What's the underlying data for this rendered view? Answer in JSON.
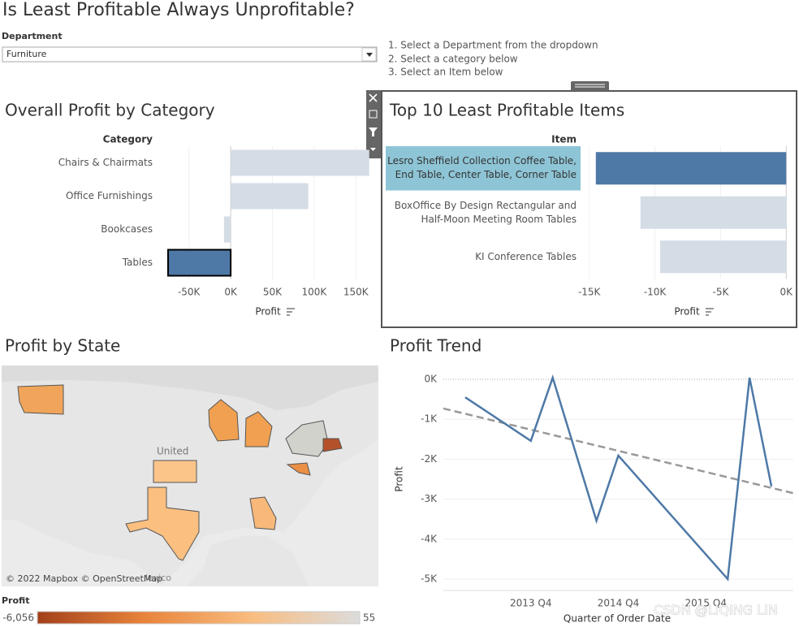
{
  "header": {
    "title": "Is Least Profitable Always Unprofitable?"
  },
  "filter": {
    "label": "Department",
    "value": "Furniture"
  },
  "instructions": [
    "1. Select a Department from the dropdown",
    "2. Select a category below",
    "3. Select an Item below"
  ],
  "watermark": "CSDN @LIQING LIN",
  "chart_data": [
    {
      "type": "bar",
      "orientation": "horizontal",
      "title": "Overall Profit by Category",
      "category_label": "Category",
      "x_label": "Profit",
      "categories": [
        "Chairs & Chairmats",
        "Office Furnishings",
        "Bookcases",
        "Tables"
      ],
      "values": [
        166000,
        93000,
        -8000,
        -75000
      ],
      "highlight": [
        false,
        false,
        false,
        true
      ],
      "color": "#d4dce5",
      "highlight_color": "#4e79a7",
      "xlim": [
        -75000,
        176000
      ],
      "xticks": [
        {
          "value": -50000,
          "label": "-50K"
        },
        {
          "value": 0,
          "label": "0K"
        },
        {
          "value": 50000,
          "label": "50K"
        },
        {
          "value": 100000,
          "label": "100K"
        },
        {
          "value": 150000,
          "label": "150K"
        }
      ]
    },
    {
      "type": "bar",
      "orientation": "horizontal",
      "title": "Top 10 Least Profitable Items",
      "category_label": "Item",
      "x_label": "Profit",
      "categories": [
        "Lesro Sheffield Collection Coffee Table, End Table, Center Table, Corner Table",
        "BoxOffice By Design Rectangular and Half-Moon Meeting Room Tables",
        "KI Conference Tables"
      ],
      "values": [
        -14500,
        -11100,
        -9600
      ],
      "highlight": [
        true,
        false,
        false
      ],
      "color": "#d4dce5",
      "highlight_color": "#4e79a7",
      "row_highlight_color": "#8ec5d6",
      "xlim": [
        -15600,
        540
      ],
      "xticks": [
        {
          "value": -15000,
          "label": "-15K"
        },
        {
          "value": -10000,
          "label": "-10K"
        },
        {
          "value": -5000,
          "label": "-5K"
        },
        {
          "value": 0,
          "label": "0K"
        }
      ]
    },
    {
      "type": "map",
      "title": "Profit by State",
      "attribution": "© 2022 Mapbox © OpenStreetMap",
      "labels": [
        "United",
        "lexico"
      ],
      "legend": {
        "title": "Profit",
        "range": [
          {
            "value": -6056,
            "label": "-6,056"
          },
          {
            "value": 55,
            "label": "55"
          }
        ],
        "colors": [
          "#a3401a",
          "#e8843c",
          "#f9bd80",
          "#dcdcdc"
        ]
      }
    },
    {
      "type": "line",
      "title": "Profit Trend",
      "y_label": "Profit",
      "x_label": "Quarter of Order Date",
      "x": [
        "2013 Q1",
        "2013 Q4",
        "2014 Q1",
        "2014 Q3",
        "2014 Q4",
        "2016 Q1",
        "2016 Q2",
        "2016 Q3"
      ],
      "values": [
        -450,
        -1540,
        40,
        -3540,
        -1910,
        -5000,
        40,
        -2680
      ],
      "color": "#4e79a7",
      "trend_line": [
        -730,
        -2850
      ],
      "trend_color": "#999999",
      "xlim": [
        "2012 Q4",
        "2016 Q4"
      ],
      "xticks": [
        "2013 Q4",
        "2014 Q4",
        "2015 Q4"
      ],
      "ylim": [
        -5200,
        200
      ],
      "yticks": [
        {
          "value": 0,
          "label": "0K"
        },
        {
          "value": -1000,
          "label": "-1K"
        },
        {
          "value": -2000,
          "label": "-2K"
        },
        {
          "value": -3000,
          "label": "-3K"
        },
        {
          "value": -4000,
          "label": "-4K"
        },
        {
          "value": -5000,
          "label": "-5K"
        }
      ]
    }
  ]
}
